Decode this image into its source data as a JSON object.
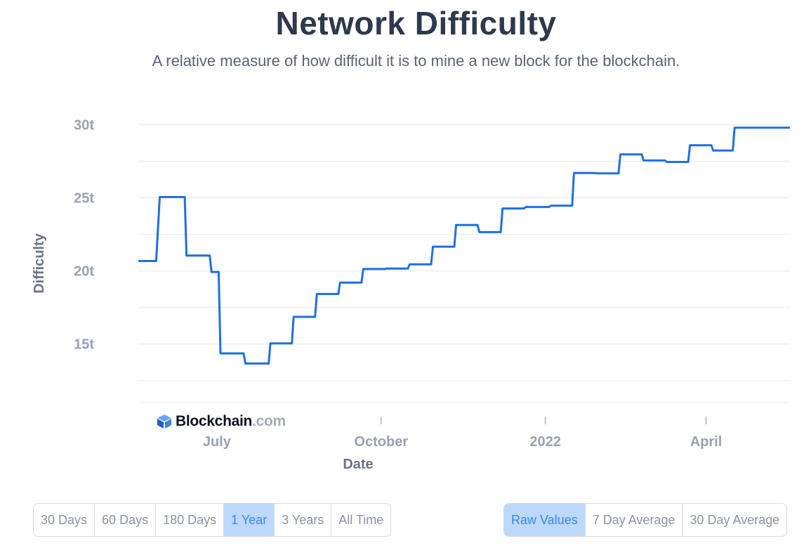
{
  "title": "Network Difficulty",
  "subtitle": "A relative measure of how difficult it is to mine a new block for the blockchain.",
  "logo": {
    "name": "Blockchain",
    "suffix": ".com"
  },
  "range_buttons": [
    {
      "label": "30 Days",
      "active": false
    },
    {
      "label": "60 Days",
      "active": false
    },
    {
      "label": "180 Days",
      "active": false
    },
    {
      "label": "1 Year",
      "active": true
    },
    {
      "label": "3 Years",
      "active": false
    },
    {
      "label": "All Time",
      "active": false
    }
  ],
  "value_buttons": [
    {
      "label": "Raw Values",
      "active": true
    },
    {
      "label": "7 Day Average",
      "active": false
    },
    {
      "label": "30 Day Average",
      "active": false
    }
  ],
  "chart_data": {
    "type": "line",
    "title": "Network Difficulty",
    "subtitle": "A relative measure of how difficult it is to mine a new block for the blockchain.",
    "xlabel": "Date",
    "ylabel": "Difficulty",
    "xlim": [
      "2021-05-18",
      "2022-05-18"
    ],
    "ylim": [
      11,
      30.5
    ],
    "x_ticks": [
      {
        "date": "2021-07-01",
        "label": "July"
      },
      {
        "date": "2021-10-01",
        "label": "October"
      },
      {
        "date": "2022-01-01",
        "label": "2022"
      },
      {
        "date": "2022-04-01",
        "label": "April"
      }
    ],
    "y_ticks": [
      {
        "value": 15,
        "label": "15t"
      },
      {
        "value": 20,
        "label": "20t"
      },
      {
        "value": 25,
        "label": "25t"
      },
      {
        "value": 30,
        "label": "30t"
      }
    ],
    "grid": true,
    "series": [
      {
        "color": "#1f6fe5",
        "points": [
          [
            "2021-05-18",
            20.68
          ],
          [
            "2021-05-28",
            20.68
          ],
          [
            "2021-05-30",
            25.05
          ],
          [
            "2021-06-13",
            25.05
          ],
          [
            "2021-06-14",
            21.05
          ],
          [
            "2021-06-27",
            21.05
          ],
          [
            "2021-06-28",
            19.93
          ],
          [
            "2021-07-02",
            19.93
          ],
          [
            "2021-07-03",
            14.36
          ],
          [
            "2021-07-16",
            14.36
          ],
          [
            "2021-07-17",
            13.67
          ],
          [
            "2021-07-30",
            13.67
          ],
          [
            "2021-07-31",
            15.05
          ],
          [
            "2021-08-12",
            15.05
          ],
          [
            "2021-08-13",
            16.86
          ],
          [
            "2021-08-25",
            16.86
          ],
          [
            "2021-08-26",
            18.42
          ],
          [
            "2021-09-07",
            18.42
          ],
          [
            "2021-09-08",
            19.2
          ],
          [
            "2021-09-20",
            19.2
          ],
          [
            "2021-09-21",
            20.13
          ],
          [
            "2021-10-03",
            20.13
          ],
          [
            "2021-10-04",
            20.16
          ],
          [
            "2021-10-16",
            20.16
          ],
          [
            "2021-10-17",
            20.45
          ],
          [
            "2021-10-29",
            20.45
          ],
          [
            "2021-10-30",
            21.66
          ],
          [
            "2021-11-11",
            21.66
          ],
          [
            "2021-11-12",
            23.14
          ],
          [
            "2021-11-24",
            23.14
          ],
          [
            "2021-11-25",
            22.65
          ],
          [
            "2021-12-07",
            22.65
          ],
          [
            "2021-12-08",
            24.27
          ],
          [
            "2021-12-20",
            24.27
          ],
          [
            "2021-12-21",
            24.37
          ],
          [
            "2022-01-03",
            24.37
          ],
          [
            "2022-01-04",
            24.46
          ],
          [
            "2022-01-16",
            24.46
          ],
          [
            "2022-01-17",
            26.69
          ],
          [
            "2022-01-29",
            26.69
          ],
          [
            "2022-01-30",
            26.67
          ],
          [
            "2022-02-11",
            26.67
          ],
          [
            "2022-02-12",
            27.97
          ],
          [
            "2022-02-24",
            27.97
          ],
          [
            "2022-02-25",
            27.55
          ],
          [
            "2022-03-09",
            27.55
          ],
          [
            "2022-03-10",
            27.45
          ],
          [
            "2022-03-22",
            27.45
          ],
          [
            "2022-03-23",
            28.59
          ],
          [
            "2022-04-04",
            28.59
          ],
          [
            "2022-04-05",
            28.23
          ],
          [
            "2022-04-16",
            28.23
          ],
          [
            "2022-04-17",
            29.79
          ],
          [
            "2022-05-18",
            29.79
          ]
        ]
      }
    ]
  }
}
